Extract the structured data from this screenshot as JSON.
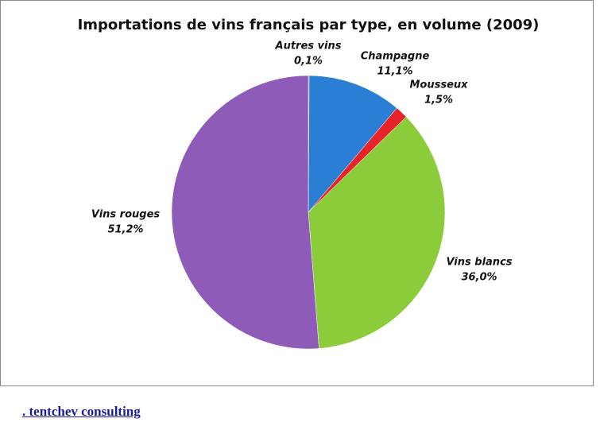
{
  "chart_data": {
    "type": "pie",
    "title": "Importations de vins français par type, en volume (2009)",
    "categories": [
      "Autres vins",
      "Champagne",
      "Mousseux",
      "Vins blancs",
      "Vins rouges"
    ],
    "values": [
      0.1,
      11.1,
      1.5,
      36.0,
      51.2
    ],
    "value_labels": [
      "0,1%",
      "11,1%",
      "1,5%",
      "36,0%",
      "51,2%"
    ],
    "colors": [
      "#2b4f8a",
      "#2a7fd4",
      "#e8242b",
      "#8ccc3a",
      "#8e5bb8"
    ]
  },
  "footer_link": ". tentchev consulting"
}
